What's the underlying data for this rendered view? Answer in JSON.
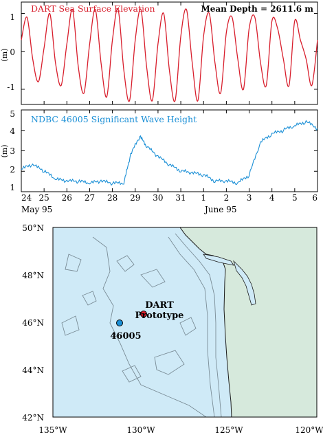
{
  "colors": {
    "dart": "#d81e2c",
    "ndbc": "#1a8fd6",
    "ocean": "#cfeaf7",
    "land": "#d6e9dc",
    "contour": "#7a8c96"
  },
  "chart_data": [
    {
      "type": "line",
      "title": "DART Sea Surface Elevation",
      "annotation": "Mean Depth = 2611.6 m",
      "ylabel": "(m)",
      "xlim": [
        24,
        37
      ],
      "ylim": [
        -1.4,
        1.3
      ],
      "yticks": [
        "1",
        "0",
        "-1"
      ],
      "series": [
        {
          "x": [
            24.0,
            24.25,
            24.5,
            24.75,
            25.0,
            25.25,
            25.5,
            25.75,
            26.0,
            26.25,
            26.5,
            26.75,
            27.0,
            27.25,
            27.5,
            27.75,
            28.0,
            28.25,
            28.5,
            28.75,
            29.0,
            29.25,
            29.5,
            29.75,
            30.0,
            30.25,
            30.5,
            30.75,
            31.0,
            31.25,
            31.5,
            31.75,
            32.0,
            32.25,
            32.5,
            32.75,
            33.0,
            33.25,
            33.5,
            33.75,
            34.0,
            34.25,
            34.5,
            34.75,
            35.0,
            35.25,
            35.5,
            35.75,
            36.0,
            36.25,
            36.5,
            36.75,
            37.0
          ],
          "y": [
            0.3,
            0.9,
            -0.2,
            -0.8,
            0.1,
            1.0,
            -0.3,
            -0.9,
            0.2,
            1.1,
            -0.4,
            -1.1,
            0.2,
            1.1,
            -0.3,
            -1.2,
            0.3,
            1.1,
            -0.5,
            -1.3,
            0.3,
            1.1,
            -0.4,
            -1.3,
            0.2,
            1.0,
            -0.5,
            -1.3,
            0.4,
            1.1,
            -0.3,
            -1.3,
            0.4,
            1.0,
            -0.3,
            -1.1,
            0.5,
            0.9,
            -0.2,
            -1.0,
            0.6,
            0.9,
            -0.3,
            -0.9,
            0.8,
            0.6,
            -0.2,
            -0.9,
            0.8,
            0.3,
            -0.2,
            -0.9,
            0.3
          ]
        }
      ]
    },
    {
      "type": "line",
      "title": "NDBC 46005 Significant Wave Height",
      "ylabel": "(m)",
      "xlim": [
        24,
        37
      ],
      "ylim": [
        1,
        5
      ],
      "yticks": [
        "5",
        "4",
        "3",
        "2",
        "1"
      ],
      "xticks": [
        "24",
        "25",
        "26",
        "27",
        "28",
        "29",
        "30",
        "31",
        "1",
        "2",
        "3",
        "4",
        "5",
        "6"
      ],
      "xlabels": [
        "May 95",
        "June 95"
      ],
      "series": [
        {
          "x": [
            24.0,
            24.5,
            25.0,
            25.5,
            26.0,
            26.5,
            27.0,
            27.5,
            28.0,
            28.5,
            28.8,
            29.2,
            29.5,
            30.0,
            30.5,
            31.0,
            31.5,
            32.0,
            32.5,
            33.0,
            33.5,
            34.0,
            34.5,
            35.0,
            35.5,
            36.0,
            36.5,
            37.0
          ],
          "y": [
            2.1,
            2.3,
            2.0,
            1.6,
            1.5,
            1.5,
            1.4,
            1.5,
            1.4,
            1.4,
            2.8,
            3.7,
            3.2,
            2.7,
            2.3,
            2.0,
            1.9,
            1.8,
            1.5,
            1.5,
            1.4,
            1.8,
            3.4,
            3.8,
            4.0,
            4.2,
            4.4,
            4.1
          ]
        }
      ]
    }
  ],
  "map": {
    "lat_ticks": [
      "50°N",
      "48°N",
      "46°N",
      "44°N",
      "42°N"
    ],
    "lon_ticks": [
      "135°W",
      "130°W",
      "125°W",
      "120°W"
    ],
    "stations": [
      {
        "label_lines": [
          "DART",
          "Prototype"
        ],
        "color": "#d81e2c",
        "lon": -129.4,
        "lat": 46.5
      },
      {
        "label_lines": [
          "46005"
        ],
        "color": "#1a8fd6",
        "lon": -131.0,
        "lat": 46.05
      }
    ]
  }
}
